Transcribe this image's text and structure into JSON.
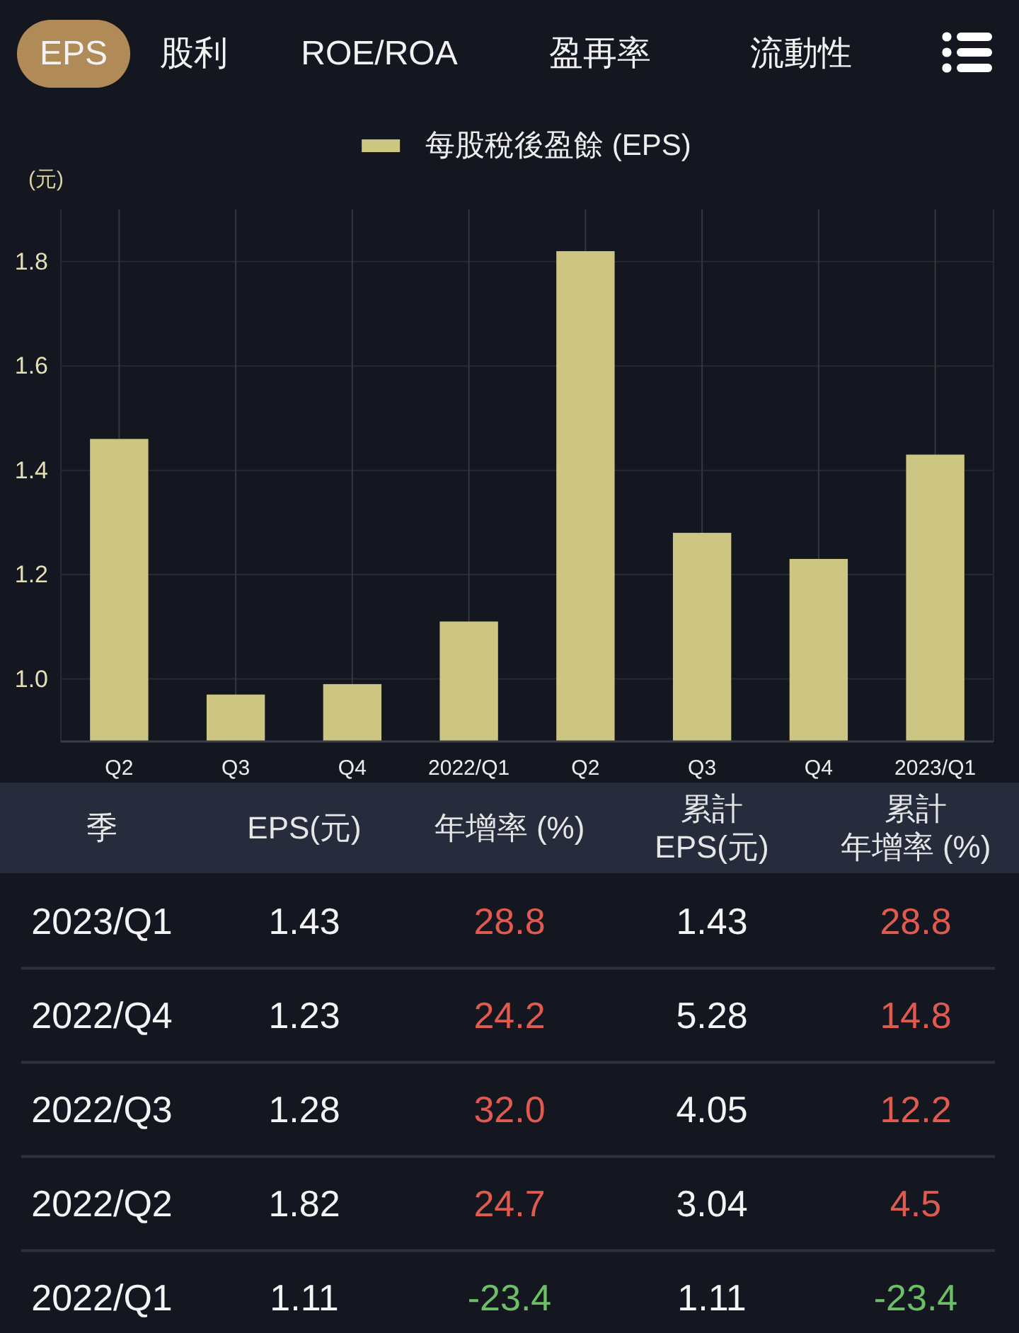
{
  "chart_data": [
    {
      "type": "other",
      "annotations": [
        "EPS",
        "股利",
        "ROE/ROA",
        "盈再率",
        "流動性"
      ]
    },
    {
      "type": "bar",
      "categories": [
        "Q2",
        "Q3",
        "Q4",
        "2022/Q1",
        "Q2",
        "Q3",
        "Q4",
        "2023/Q1"
      ],
      "series": [
        {
          "name": "每股稅後盈餘 (EPS)",
          "color": "#cdc683",
          "values": [
            1.46,
            0.97,
            0.99,
            1.11,
            1.82,
            1.28,
            1.23,
            1.43
          ]
        }
      ],
      "ylabel": "(元)",
      "ylim": [
        0.88,
        1.9
      ],
      "yticks": [
        {
          "value": 1,
          "label": "1.0"
        },
        1.2,
        1.4,
        1.6,
        1.8
      ],
      "grid": true,
      "legend": "top"
    },
    {
      "type": "other",
      "annotations": [
        "季",
        "EPS(元)",
        "年增率 (%)",
        "累計",
        "EPS(元)",
        "累計",
        "年增率 (%)",
        "2023/Q1",
        "1.43",
        "28.8",
        "1.43",
        "28.8",
        "2022/Q4",
        "1.23",
        "24.2",
        "5.28",
        "14.8",
        "2022/Q3",
        "1.28",
        "32.0",
        "4.05",
        "12.2",
        "2022/Q2",
        "1.82",
        "24.7",
        "3.04",
        "4.5",
        "2022/Q1",
        "1.11",
        "-23.4",
        "1.11",
        "-23.4"
      ]
    }
  ]
}
